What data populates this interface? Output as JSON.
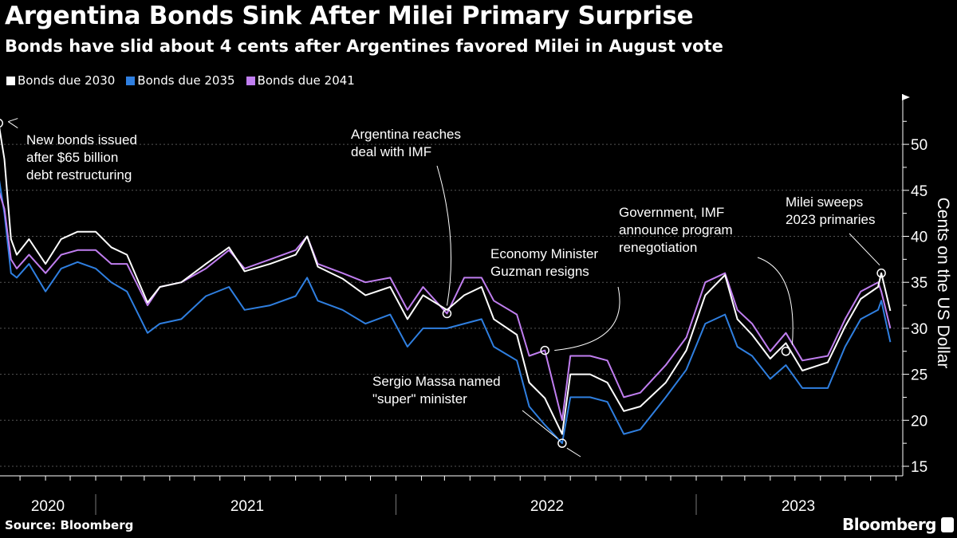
{
  "title": "Argentina Bonds Sink After Milei Primary Surprise",
  "subtitle": "Bonds have slid about 4 cents after Argentines favored Milei in August vote",
  "source": "Source: Bloomberg",
  "brand": "Bloomberg",
  "chart_data": {
    "type": "line",
    "ylabel": "Cents on the US Dollar",
    "ylim": [
      15,
      55
    ],
    "yticks": [
      15,
      20,
      25,
      30,
      35,
      40,
      45,
      50
    ],
    "y_axis_side": "right",
    "grid": true,
    "legend_placement": "top-left",
    "xlim": [
      "2020-09-01",
      "2023-09-10"
    ],
    "xtick_labels": [
      "2020",
      "2021",
      "2022",
      "2023"
    ],
    "dates": [
      "2020-09-05",
      "2020-09-12",
      "2020-09-20",
      "2020-09-27",
      "2020-10-12",
      "2020-11-01",
      "2020-11-20",
      "2020-12-10",
      "2021-01-01",
      "2021-01-20",
      "2021-02-08",
      "2021-03-05",
      "2021-03-20",
      "2021-04-15",
      "2021-05-15",
      "2021-06-12",
      "2021-07-01",
      "2021-08-01",
      "2021-09-01",
      "2021-09-15",
      "2021-09-28",
      "2021-10-28",
      "2021-11-25",
      "2021-12-25",
      "2022-01-15",
      "2022-02-03",
      "2022-03-04",
      "2022-03-25",
      "2022-04-15",
      "2022-04-30",
      "2022-05-28",
      "2022-06-12",
      "2022-07-01",
      "2022-07-22",
      "2022-08-01",
      "2022-08-25",
      "2022-09-15",
      "2022-10-05",
      "2022-10-25",
      "2022-11-25",
      "2022-12-20",
      "2023-01-12",
      "2023-02-05",
      "2023-02-20",
      "2023-03-10",
      "2023-04-01",
      "2023-04-20",
      "2023-05-10",
      "2023-06-10",
      "2023-07-01",
      "2023-07-20",
      "2023-08-10",
      "2023-08-14",
      "2023-08-25"
    ],
    "series": [
      {
        "name": "Bonds due 2030",
        "color": "#ffffff",
        "values": [
          52.3,
          48.4,
          39.7,
          38.0,
          39.7,
          37.0,
          39.7,
          40.5,
          40.5,
          38.8,
          38.0,
          32.8,
          34.5,
          35.0,
          37.0,
          38.8,
          36.2,
          37.0,
          38.0,
          40.0,
          36.7,
          35.4,
          33.6,
          34.5,
          31.0,
          33.6,
          32.0,
          33.6,
          34.5,
          31.0,
          29.3,
          24.1,
          22.4,
          18.5,
          25.0,
          25.0,
          24.1,
          21.0,
          21.5,
          24.1,
          27.6,
          33.6,
          35.8,
          31.0,
          29.3,
          26.7,
          28.4,
          25.4,
          26.3,
          30.2,
          33.2,
          34.5,
          36.0,
          31.9
        ]
      },
      {
        "name": "Bonds due 2035",
        "color": "#2f7fe0",
        "values": [
          46.5,
          42.5,
          36.0,
          35.5,
          37.0,
          34.0,
          36.5,
          37.2,
          36.5,
          35.0,
          34.0,
          29.5,
          30.5,
          31.0,
          33.5,
          34.5,
          32.0,
          32.5,
          33.5,
          35.5,
          33.0,
          32.0,
          30.5,
          31.5,
          28.0,
          30.0,
          30.0,
          30.5,
          31.0,
          28.0,
          26.5,
          21.5,
          19.5,
          17.5,
          22.5,
          22.5,
          22.0,
          18.5,
          19.0,
          22.5,
          25.5,
          30.5,
          31.5,
          28.0,
          27.0,
          24.5,
          26.0,
          23.5,
          23.5,
          28.0,
          31.0,
          32.0,
          33.0,
          28.5
        ]
      },
      {
        "name": "Bonds due 2041",
        "color": "#c07ef0",
        "values": [
          45.0,
          43.0,
          37.5,
          36.5,
          38.0,
          36.0,
          38.0,
          38.5,
          38.5,
          37.0,
          37.0,
          32.5,
          34.5,
          35.0,
          36.5,
          38.5,
          36.5,
          37.5,
          38.5,
          40.0,
          37.0,
          36.0,
          35.0,
          35.5,
          32.0,
          34.5,
          31.6,
          35.5,
          35.5,
          33.0,
          31.5,
          27.0,
          27.6,
          20.0,
          27.0,
          27.0,
          26.5,
          22.5,
          23.0,
          26.0,
          29.0,
          35.0,
          36.0,
          32.0,
          30.5,
          27.5,
          29.5,
          26.5,
          27.0,
          31.0,
          34.0,
          35.0,
          34.0,
          30.0
        ]
      }
    ],
    "annotations": [
      {
        "text": [
          "New bonds issued",
          "after $65 billion",
          "debt restructuring"
        ],
        "date": "2020-09-05",
        "value": 52.3
      },
      {
        "text": [
          "Argentina reaches",
          "deal with IMF"
        ],
        "date": "2022-03-04",
        "value": 31.6
      },
      {
        "text": [
          "Economy Minister",
          "Guzman resigns"
        ],
        "date": "2022-07-01",
        "value": 27.6
      },
      {
        "text": [
          "Sergio Massa named",
          "\"super\" minister"
        ],
        "date": "2022-07-22",
        "value": 17.5
      },
      {
        "text": [
          "Government, IMF",
          "announce program",
          "renegotiation"
        ],
        "date": "2023-04-20",
        "value": 27.5
      },
      {
        "text": [
          "Milei sweeps",
          "2023 primaries"
        ],
        "date": "2023-08-14",
        "value": 36.0
      }
    ]
  }
}
